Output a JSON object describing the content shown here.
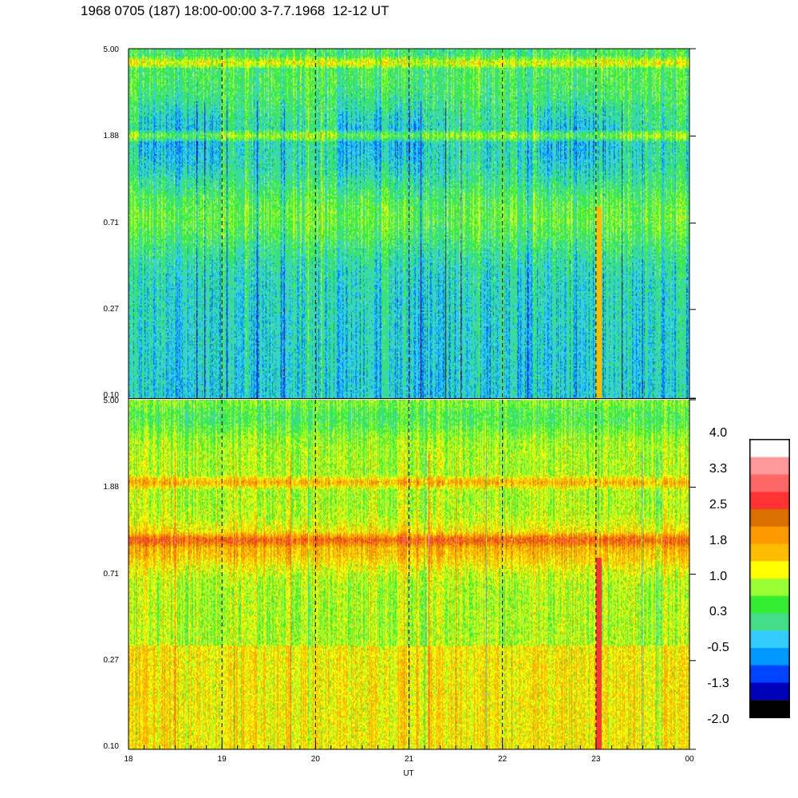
{
  "title": "1968 0705 (187) 18:00-00:00 3-7.7.1968  12-12 UT",
  "chart_data": {
    "type": "heatmap",
    "title": "1968 0705 (187) 18:00-00:00 3-7.7.1968  12-12 UT",
    "xlabel": "UT",
    "x_ticks": [
      "18",
      "19",
      "20",
      "21",
      "22",
      "23",
      "00"
    ],
    "x_range": [
      18,
      24
    ],
    "y_scale": "log",
    "y_range": [
      0.1,
      5.0
    ],
    "y_ticks": [
      "0.10",
      "0.27",
      "0.71",
      "1.88",
      "5.00"
    ],
    "vertical_dashed_lines_at_hour": [
      19,
      20,
      21,
      22,
      23
    ],
    "panels": [
      {
        "name": "upper panel",
        "y_ticks": [
          "0.10",
          "0.27",
          "0.71",
          "1.88",
          "5.00"
        ],
        "dominant_levels": [
          -0.5,
          0.3,
          1.0
        ],
        "enhanced_band_frequencies": [
          1.9,
          4.3
        ]
      },
      {
        "name": "lower panel",
        "y_ticks": [
          "0.10",
          "0.27",
          "0.71",
          "1.88",
          "5.00"
        ],
        "dominant_levels": [
          1.0,
          1.8,
          2.5
        ],
        "enhanced_band_frequencies": [
          1.05,
          2.0
        ]
      }
    ],
    "colorbar": {
      "labels": [
        "4.0",
        "3.3",
        "2.5",
        "1.8",
        "1.0",
        "0.3",
        "-0.5",
        "-1.3",
        "-2.0"
      ],
      "range": [
        -2.0,
        4.0
      ],
      "colors": [
        "#ffffff",
        "#ff9999",
        "#ff6666",
        "#ff3333",
        "#d97000",
        "#ff9900",
        "#ffbb00",
        "#ffff00",
        "#99ff33",
        "#33ee33",
        "#44dd88",
        "#33ccff",
        "#0099ff",
        "#0044ff",
        "#0000bb",
        "#000000"
      ]
    }
  }
}
